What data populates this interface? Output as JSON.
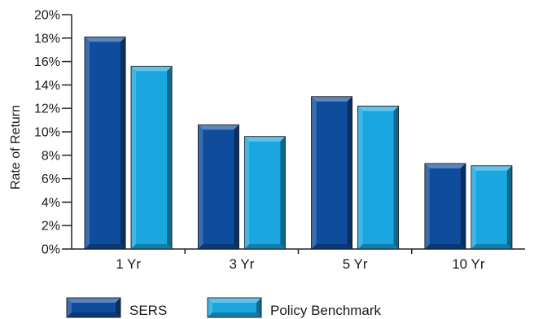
{
  "chart_data": {
    "type": "bar",
    "title": "",
    "xlabel": "",
    "ylabel": "Rate of Return",
    "categories": [
      "1 Yr",
      "3 Yr",
      "5 Yr",
      "10 Yr"
    ],
    "series": [
      {
        "name": "SERS",
        "values": [
          18.1,
          10.6,
          13.0,
          7.3
        ],
        "color": "#0f4c9c"
      },
      {
        "name": "Policy Benchmark",
        "values": [
          15.6,
          9.6,
          12.2,
          7.1
        ],
        "color": "#1aa6df"
      }
    ],
    "ylim": [
      0,
      20
    ],
    "ytick_step": 2,
    "ytick_format": "percent",
    "grid": false,
    "legend_position": "bottom"
  }
}
